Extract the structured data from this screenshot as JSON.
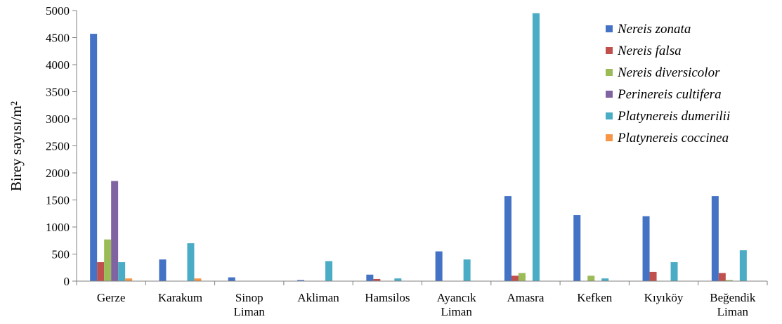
{
  "chart_data": {
    "type": "bar",
    "title": "",
    "xlabel": "",
    "ylabel": "Birey sayısı/m²",
    "ylim": [
      0,
      5000
    ],
    "yticks": [
      0,
      500,
      1000,
      1500,
      2000,
      2500,
      3000,
      3500,
      4000,
      4500,
      5000
    ],
    "grid": false,
    "legend_position": "top-right",
    "categories": [
      [
        "Gerze"
      ],
      [
        "Karakum"
      ],
      [
        "Sinop",
        "Liman"
      ],
      [
        "Akliman"
      ],
      [
        "Hamsilos"
      ],
      [
        "Ayancık",
        "Liman"
      ],
      [
        "Amasra"
      ],
      [
        "Kefken"
      ],
      [
        "Kıyıköy"
      ],
      [
        "Beğendik",
        "Liman"
      ]
    ],
    "series": [
      {
        "name": "Nereis zonata",
        "color": "#4472C4",
        "values": [
          4570,
          400,
          70,
          20,
          120,
          550,
          1570,
          1220,
          1200,
          1570
        ]
      },
      {
        "name": "Nereis falsa",
        "color": "#C0504D",
        "values": [
          350,
          0,
          0,
          0,
          40,
          0,
          100,
          0,
          170,
          150
        ]
      },
      {
        "name": "Nereis diversicolor",
        "color": "#9BBB59",
        "values": [
          770,
          0,
          0,
          0,
          0,
          0,
          150,
          100,
          0,
          20
        ]
      },
      {
        "name": "Perinereis cultifera",
        "color": "#8064A2",
        "values": [
          1850,
          0,
          0,
          0,
          0,
          0,
          0,
          0,
          0,
          0
        ]
      },
      {
        "name": "Platynereis dumerilii",
        "color": "#4BACC6",
        "values": [
          350,
          700,
          0,
          370,
          50,
          400,
          4950,
          50,
          350,
          570
        ]
      },
      {
        "name": "Platynereis coccinea",
        "color": "#F79646",
        "values": [
          50,
          50,
          0,
          0,
          0,
          0,
          0,
          0,
          0,
          0
        ]
      }
    ]
  }
}
